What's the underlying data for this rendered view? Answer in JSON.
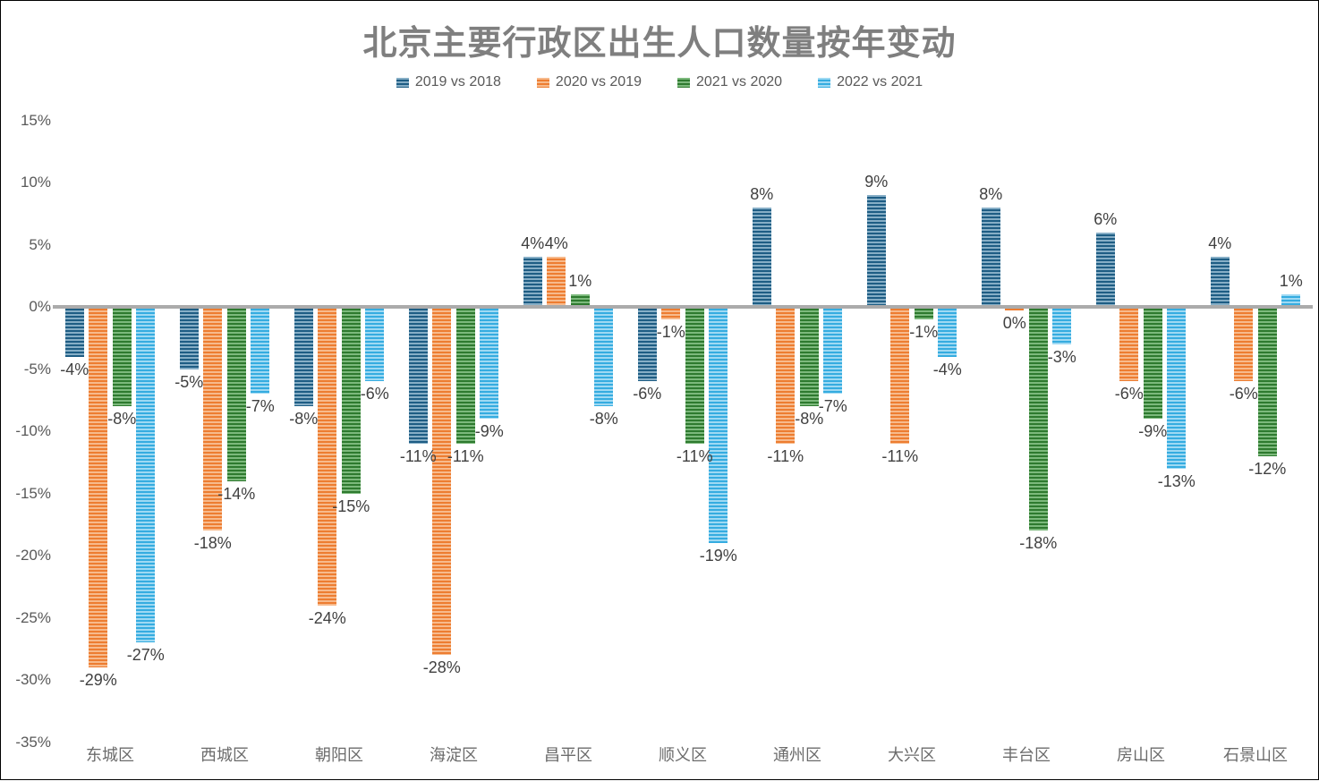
{
  "title": "北京主要行政区出生人口数量按年变动",
  "colors": {
    "title": "#7F7F7F",
    "axis_labels": "#595959",
    "category_labels": "#6B6B6B",
    "data_labels": "#404040",
    "zero_line": "#ABABAB",
    "background": "#FFFFFF"
  },
  "chart_data": {
    "type": "bar",
    "title": "北京主要行政区出生人口数量按年变动",
    "categories": [
      "东城区",
      "西城区",
      "朝阳区",
      "海淀区",
      "昌平区",
      "顺义区",
      "通州区",
      "大兴区",
      "丰台区",
      "房山区",
      "石景山区"
    ],
    "series": [
      {
        "name": "2019 vs 2018",
        "color_base": "#1E5D84",
        "color_light": "#86AEC6",
        "values": [
          -4,
          -5,
          -8,
          -11,
          4,
          -6,
          8,
          9,
          8,
          6,
          4
        ],
        "labels": [
          "-4%",
          "-5%",
          "-8%",
          "-11%",
          "4%",
          "-6%",
          "8%",
          "9%",
          "8%",
          "6%",
          "4%"
        ]
      },
      {
        "name": "2020 vs 2019",
        "color_base": "#ED7D31",
        "color_light": "#F7BA8C",
        "values": [
          -29,
          -18,
          -24,
          -28,
          4,
          -1,
          -11,
          -11,
          -0.3,
          -6,
          -6
        ],
        "labels": [
          "-29%",
          "-18%",
          "-24%",
          "-28%",
          "4%",
          "-1%",
          "-11%",
          "-11%",
          "0%",
          "-6%",
          "-6%"
        ]
      },
      {
        "name": "2021 vs 2020",
        "color_base": "#2E7A2F",
        "color_light": "#7CB97C",
        "values": [
          -8,
          -14,
          -15,
          -11,
          1,
          -11,
          -8,
          -1,
          -18,
          -9,
          -12
        ],
        "labels": [
          "-8%",
          "-14%",
          "-15%",
          "-11%",
          "1%",
          "-11%",
          "-8%",
          "-1%",
          "-18%",
          "-9%",
          "-12%"
        ]
      },
      {
        "name": "2022 vs 2021",
        "color_base": "#35ACE0",
        "color_light": "#9ED9F3",
        "values": [
          -27,
          -7,
          -6,
          -9,
          -8,
          -19,
          -7,
          -4,
          -3,
          -13,
          1
        ],
        "labels": [
          "-27%",
          "-7%",
          "-6%",
          "-9%",
          "-8%",
          "-19%",
          "-7%",
          "-4%",
          "-3%",
          "-13%",
          "1%"
        ]
      }
    ],
    "y_axis": {
      "unit": "%",
      "ylim": [
        -35,
        15
      ],
      "grid": false,
      "ticks": [
        {
          "label": "15%",
          "value": 15
        },
        {
          "label": "10%",
          "value": 10
        },
        {
          "label": "5%",
          "value": 5
        },
        {
          "label": "0%",
          "value": 0
        },
        {
          "label": "-5%",
          "value": -5
        },
        {
          "label": "-10%",
          "value": -10
        },
        {
          "label": "-15%",
          "value": -15
        },
        {
          "label": "-20%",
          "value": -20
        },
        {
          "label": "-25%",
          "value": -25
        },
        {
          "label": "-30%",
          "value": -30
        },
        {
          "label": "-35%",
          "value": -35
        }
      ]
    },
    "legend_position": "top"
  }
}
